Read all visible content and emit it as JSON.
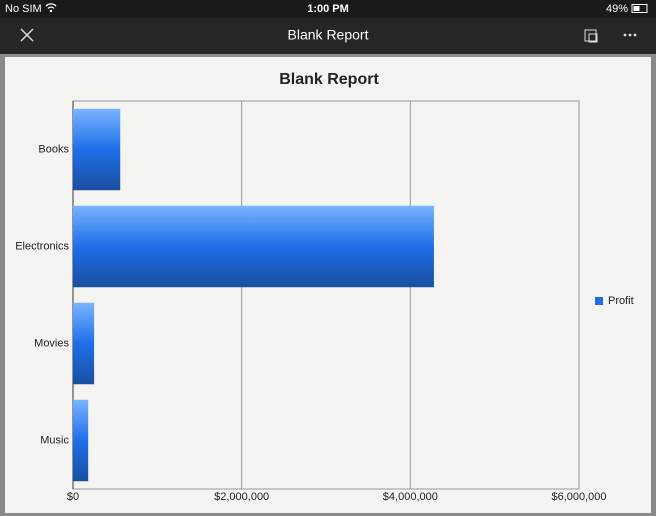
{
  "status_bar": {
    "carrier": "No SIM",
    "time": "1:00 PM",
    "battery": "49%"
  },
  "nav_bar": {
    "title": "Blank Report"
  },
  "chart_data": {
    "type": "hbar",
    "title": "Blank Report",
    "categories": [
      "Books",
      "Electronics",
      "Movies",
      "Music"
    ],
    "series": [
      {
        "name": "Profit",
        "color": "#1e6fe8",
        "values": [
          560000,
          4280000,
          250000,
          180000
        ]
      }
    ],
    "xlim": [
      0,
      6000000
    ],
    "xticks": [
      {
        "value": 0,
        "label": "$0"
      },
      {
        "value": 2000000,
        "label": "$2,000,000"
      },
      {
        "value": 4000000,
        "label": "$4,000,000"
      },
      {
        "value": 6000000,
        "label": "$6,000,000"
      }
    ],
    "grid": true,
    "legend": "right"
  }
}
